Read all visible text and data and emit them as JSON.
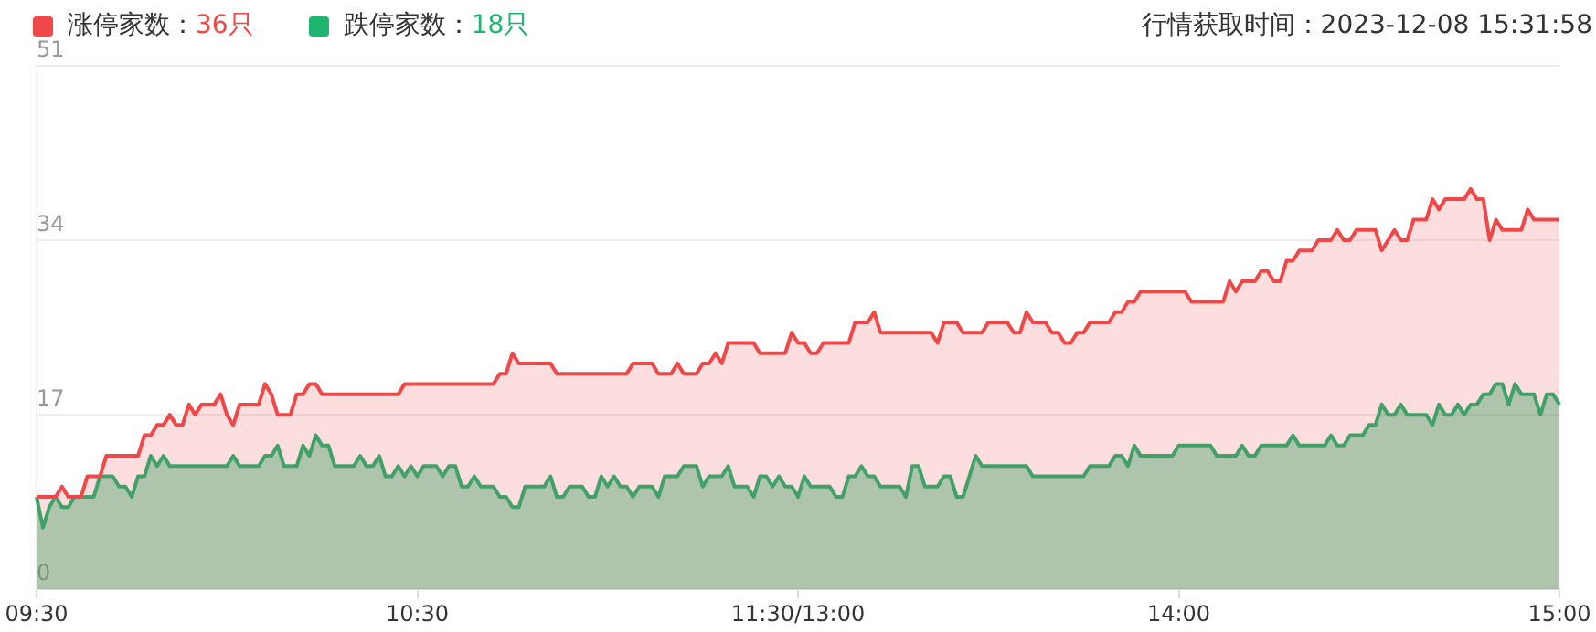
{
  "chart_data": {
    "type": "area",
    "annotations": [
      "行情获取时间：2023-12-08 15:31:58"
    ],
    "categories": [
      "09:30",
      null,
      null,
      null,
      null,
      null,
      null,
      null,
      null,
      null,
      null,
      null,
      null,
      null,
      null,
      null,
      null,
      null,
      null,
      null,
      null,
      null,
      null,
      null,
      null,
      null,
      null,
      null,
      null,
      null,
      null,
      null,
      null,
      null,
      null,
      null,
      null,
      null,
      null,
      null,
      null,
      null,
      null,
      null,
      null,
      null,
      null,
      null,
      null,
      null,
      null,
      null,
      null,
      null,
      null,
      null,
      null,
      null,
      null,
      null,
      "10:30",
      null,
      null,
      null,
      null,
      null,
      null,
      null,
      null,
      null,
      null,
      null,
      null,
      null,
      null,
      null,
      null,
      null,
      null,
      null,
      null,
      null,
      null,
      null,
      null,
      null,
      null,
      null,
      null,
      null,
      null,
      null,
      null,
      null,
      null,
      null,
      null,
      null,
      null,
      null,
      null,
      null,
      null,
      null,
      null,
      null,
      null,
      null,
      null,
      null,
      null,
      null,
      null,
      null,
      null,
      null,
      null,
      null,
      null,
      null,
      "11:30/13:00",
      null,
      null,
      null,
      null,
      null,
      null,
      null,
      null,
      null,
      null,
      null,
      null,
      null,
      null,
      null,
      null,
      null,
      null,
      null,
      null,
      null,
      null,
      null,
      null,
      null,
      null,
      null,
      null,
      null,
      null,
      null,
      null,
      null,
      null,
      null,
      null,
      null,
      null,
      null,
      null,
      null,
      null,
      null,
      null,
      null,
      null,
      null,
      null,
      null,
      null,
      null,
      null,
      null,
      null,
      null,
      null,
      null,
      null,
      null,
      "14:00",
      null,
      null,
      null,
      null,
      null,
      null,
      null,
      null,
      null,
      null,
      null,
      null,
      null,
      null,
      null,
      null,
      null,
      null,
      null,
      null,
      null,
      null,
      null,
      null,
      null,
      null,
      null,
      null,
      null,
      null,
      null,
      null,
      null,
      null,
      null,
      null,
      null,
      null,
      null,
      null,
      null,
      null,
      null,
      null,
      null,
      null,
      null,
      null,
      null,
      null,
      null,
      null,
      null,
      null,
      null,
      null,
      null,
      null,
      null,
      "15:00"
    ],
    "ylim": [
      0,
      51
    ],
    "yticks": [
      0,
      17,
      34,
      51
    ],
    "grid": "y",
    "legend": "top left",
    "series": [
      {
        "name": "涨停家数：36只",
        "color": "#f04848",
        "values": [
          9,
          9,
          9,
          9,
          10,
          9,
          9,
          9,
          11,
          11,
          11,
          13,
          13,
          13,
          13,
          13,
          13,
          15,
          15,
          16,
          16,
          17,
          16,
          16,
          18,
          17,
          18,
          18,
          18,
          19,
          17,
          16,
          18,
          18,
          18,
          18,
          20,
          19,
          17,
          17,
          17,
          19,
          19,
          20,
          20,
          19,
          19,
          19,
          19,
          19,
          19,
          19,
          19,
          19,
          19,
          19,
          19,
          19,
          20,
          20,
          20,
          20,
          20,
          20,
          20,
          20,
          20,
          20,
          20,
          20,
          20,
          20,
          20,
          21,
          21,
          23,
          22,
          22,
          22,
          22,
          22,
          22,
          21,
          21,
          21,
          21,
          21,
          21,
          21,
          21,
          21,
          21,
          21,
          21,
          22,
          22,
          22,
          22,
          21,
          21,
          21,
          22,
          21,
          21,
          21,
          22,
          22,
          23,
          22,
          24,
          24,
          24,
          24,
          24,
          23,
          23,
          23,
          23,
          23,
          25,
          24,
          24,
          23,
          23,
          24,
          24,
          24,
          24,
          24,
          26,
          26,
          26,
          27,
          25,
          25,
          25,
          25,
          25,
          25,
          25,
          25,
          25,
          24,
          26,
          26,
          26,
          25,
          25,
          25,
          25,
          26,
          26,
          26,
          26,
          25,
          25,
          27,
          26,
          26,
          26,
          25,
          25,
          24,
          24,
          25,
          25,
          26,
          26,
          26,
          26,
          27,
          27,
          28,
          28,
          29,
          29,
          29,
          29,
          29,
          29,
          29,
          29,
          28,
          28,
          28,
          28,
          28,
          28,
          30,
          29,
          30,
          30,
          30,
          31,
          31,
          30,
          30,
          32,
          32,
          33,
          33,
          33,
          34,
          34,
          34,
          35,
          34,
          34,
          35,
          35,
          35,
          35,
          33,
          34,
          35,
          34,
          34,
          36,
          36,
          36,
          38,
          37,
          38,
          38,
          38,
          38,
          39,
          38,
          38,
          34,
          36,
          35,
          35,
          35,
          35,
          37,
          36,
          36,
          36,
          36,
          36
        ]
      },
      {
        "name": "跌停家数：18只",
        "color": "#1db56f",
        "values": [
          9,
          6,
          8,
          9,
          8,
          8,
          9,
          9,
          9,
          9,
          11,
          11,
          11,
          10,
          10,
          9,
          11,
          11,
          13,
          12,
          13,
          12,
          12,
          12,
          12,
          12,
          12,
          12,
          12,
          12,
          12,
          13,
          12,
          12,
          12,
          12,
          13,
          13,
          14,
          12,
          12,
          12,
          14,
          13,
          15,
          14,
          14,
          12,
          12,
          12,
          12,
          13,
          12,
          12,
          13,
          11,
          11,
          12,
          11,
          12,
          11,
          12,
          12,
          12,
          11,
          12,
          12,
          10,
          10,
          11,
          10,
          10,
          10,
          9,
          9,
          8,
          8,
          10,
          10,
          10,
          10,
          11,
          9,
          9,
          10,
          10,
          10,
          9,
          9,
          11,
          10,
          11,
          10,
          10,
          9,
          10,
          10,
          10,
          9,
          11,
          11,
          11,
          12,
          12,
          12,
          10,
          11,
          11,
          11,
          12,
          10,
          10,
          10,
          9,
          11,
          11,
          10,
          11,
          10,
          10,
          9,
          11,
          10,
          10,
          10,
          10,
          9,
          9,
          11,
          11,
          12,
          11,
          11,
          10,
          10,
          10,
          10,
          9,
          12,
          12,
          10,
          10,
          10,
          11,
          11,
          9,
          9,
          11,
          13,
          12,
          12,
          12,
          12,
          12,
          12,
          12,
          12,
          11,
          11,
          11,
          11,
          11,
          11,
          11,
          11,
          11,
          12,
          12,
          12,
          12,
          13,
          13,
          12,
          14,
          13,
          13,
          13,
          13,
          13,
          13,
          14,
          14,
          14,
          14,
          14,
          14,
          13,
          13,
          13,
          13,
          14,
          13,
          13,
          14,
          14,
          14,
          14,
          14,
          15,
          14,
          14,
          14,
          14,
          14,
          15,
          14,
          14,
          15,
          15,
          15,
          16,
          16,
          18,
          17,
          17,
          18,
          17,
          17,
          17,
          17,
          16,
          18,
          17,
          17,
          18,
          17,
          18,
          18,
          19,
          19,
          20,
          20,
          18,
          20,
          19,
          19,
          19,
          17,
          19,
          19,
          18
        ]
      }
    ]
  }
}
